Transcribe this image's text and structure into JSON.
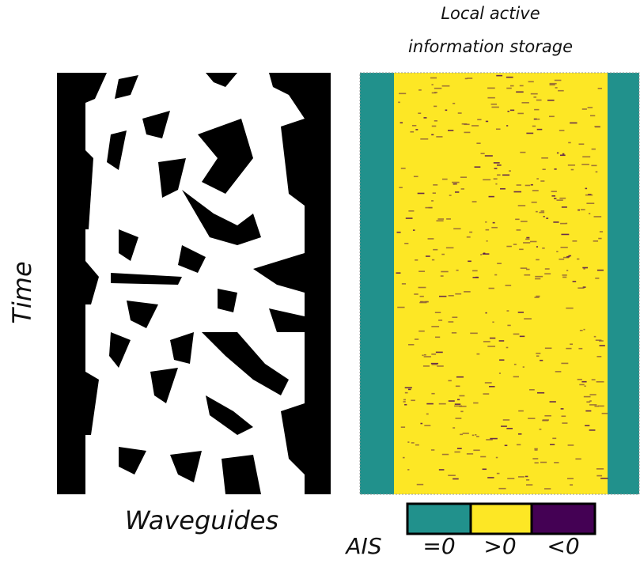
{
  "left_panel": {
    "x_label": "Waveguides",
    "y_label": "Time"
  },
  "right_panel": {
    "title": [
      "Local active",
      "information storage"
    ]
  },
  "legend": {
    "label": "AIS",
    "items": [
      {
        "label": "=0",
        "color": "#21918c"
      },
      {
        "label": ">0",
        "color": "#fde725"
      },
      {
        "label": "<0",
        "color": "#440154"
      }
    ]
  }
}
